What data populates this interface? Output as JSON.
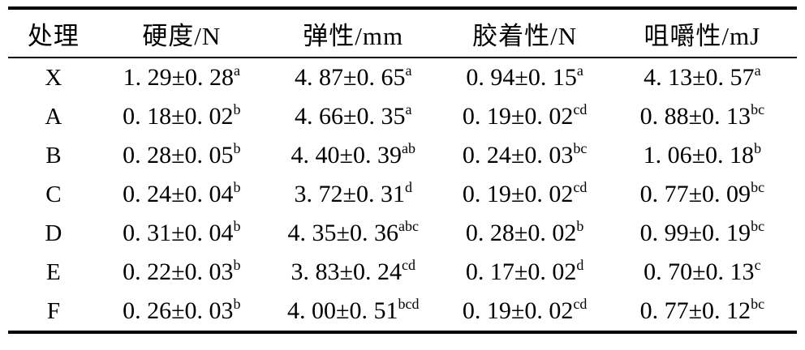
{
  "colors": {
    "text": "#000000",
    "background": "#ffffff",
    "rule": "#000000"
  },
  "table": {
    "headers": [
      {
        "key": "treatment",
        "label": "处理"
      },
      {
        "key": "hardness",
        "label": "硬度/N"
      },
      {
        "key": "elasticity",
        "label": "弹性/mm"
      },
      {
        "key": "gumminess",
        "label": "胶着性/N"
      },
      {
        "key": "chewiness",
        "label": "咀嚼性/mJ"
      }
    ],
    "rows": [
      {
        "treatment": "X",
        "cells": [
          {
            "value": "1. 29±0. 28",
            "sup": "a"
          },
          {
            "value": "4. 87±0. 65",
            "sup": "a"
          },
          {
            "value": "0. 94±0. 15",
            "sup": "a"
          },
          {
            "value": "4. 13±0. 57",
            "sup": "a"
          }
        ]
      },
      {
        "treatment": "A",
        "cells": [
          {
            "value": "0. 18±0. 02",
            "sup": "b"
          },
          {
            "value": "4. 66±0. 35",
            "sup": "a"
          },
          {
            "value": "0. 19±0. 02",
            "sup": "cd"
          },
          {
            "value": "0. 88±0. 13",
            "sup": "bc"
          }
        ]
      },
      {
        "treatment": "B",
        "cells": [
          {
            "value": "0. 28±0. 05",
            "sup": "b"
          },
          {
            "value": "4. 40±0. 39",
            "sup": "ab"
          },
          {
            "value": "0. 24±0. 03",
            "sup": "bc"
          },
          {
            "value": "1. 06±0. 18",
            "sup": "b"
          }
        ]
      },
      {
        "treatment": "C",
        "cells": [
          {
            "value": "0. 24±0. 04",
            "sup": "b"
          },
          {
            "value": "3. 72±0. 31",
            "sup": "d"
          },
          {
            "value": "0. 19±0. 02",
            "sup": "cd"
          },
          {
            "value": "0. 77±0. 09",
            "sup": "bc"
          }
        ]
      },
      {
        "treatment": "D",
        "cells": [
          {
            "value": "0. 31±0. 04",
            "sup": "b"
          },
          {
            "value": "4. 35±0. 36",
            "sup": "abc"
          },
          {
            "value": "0. 28±0. 02",
            "sup": "b"
          },
          {
            "value": "0. 99±0. 19",
            "sup": "bc"
          }
        ]
      },
      {
        "treatment": "E",
        "cells": [
          {
            "value": "0. 22±0. 03",
            "sup": "b"
          },
          {
            "value": "3. 83±0. 24",
            "sup": "cd"
          },
          {
            "value": "0. 17±0. 02",
            "sup": "d"
          },
          {
            "value": "0. 70±0. 13",
            "sup": "c"
          }
        ]
      },
      {
        "treatment": "F",
        "cells": [
          {
            "value": "0. 26±0. 03",
            "sup": "b"
          },
          {
            "value": "4. 00±0. 51",
            "sup": "bcd"
          },
          {
            "value": "0. 19±0. 02",
            "sup": "cd"
          },
          {
            "value": "0. 77±0. 12",
            "sup": "bc"
          }
        ]
      }
    ]
  }
}
